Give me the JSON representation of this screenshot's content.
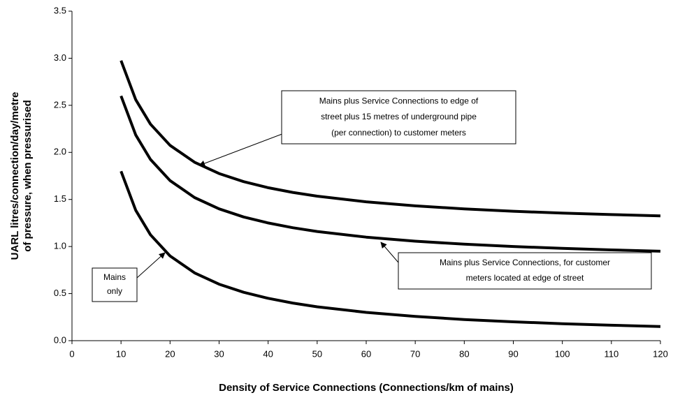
{
  "chart_data": {
    "type": "line",
    "xlabel": "Density of Service Connections (Connections/km of mains)",
    "ylabel": [
      "UARL litres/connection/day/metre",
      "of pressure, when pressurised"
    ],
    "x": [
      10,
      13,
      16,
      20,
      25,
      30,
      35,
      40,
      45,
      50,
      60,
      70,
      80,
      90,
      100,
      110,
      120
    ],
    "series": [
      {
        "name": "Mains plus Service Connections to edge of street plus 15 metres of underground pipe (per connection) to customer meters",
        "color": "#000000",
        "values": [
          2.975,
          2.56,
          2.3,
          2.075,
          1.895,
          1.775,
          1.689,
          1.625,
          1.575,
          1.535,
          1.475,
          1.432,
          1.4,
          1.375,
          1.355,
          1.339,
          1.325
        ]
      },
      {
        "name": "Mains plus Service Connections, for customer meters located at edge of street",
        "color": "#000000",
        "values": [
          2.6,
          2.185,
          1.925,
          1.7,
          1.52,
          1.4,
          1.314,
          1.25,
          1.2,
          1.16,
          1.1,
          1.057,
          1.025,
          1.0,
          0.98,
          0.964,
          0.95
        ]
      },
      {
        "name": "Mains only",
        "color": "#000000",
        "values": [
          1.8,
          1.385,
          1.125,
          0.9,
          0.72,
          0.6,
          0.514,
          0.45,
          0.4,
          0.36,
          0.3,
          0.257,
          0.225,
          0.2,
          0.18,
          0.164,
          0.15
        ]
      }
    ],
    "annotations": [
      {
        "lines": [
          "Mains plus Service Connections to edge of",
          "street plus 15 metres of underground pipe",
          "(per connection) to customer meters"
        ]
      },
      {
        "lines": [
          "Mains plus Service Connections, for customer",
          "meters located at edge of street"
        ]
      },
      {
        "lines": [
          "Mains",
          "only"
        ]
      }
    ],
    "xlim": [
      0,
      120
    ],
    "xticks": [
      0,
      10,
      20,
      30,
      40,
      50,
      60,
      70,
      80,
      90,
      100,
      110,
      120
    ],
    "ylim": [
      0,
      3.5
    ],
    "yticks": [
      {
        "value": 0,
        "label": "0.0"
      },
      {
        "value": 0.5,
        "label": "0.5"
      },
      {
        "value": 1,
        "label": "1.0"
      },
      {
        "value": 1.5,
        "label": "1.5"
      },
      {
        "value": 2,
        "label": "2.0"
      },
      {
        "value": 2.5,
        "label": "2.5"
      },
      {
        "value": 3,
        "label": "3.0"
      },
      {
        "value": 3.5,
        "label": "3.5"
      }
    ],
    "grid": false
  }
}
